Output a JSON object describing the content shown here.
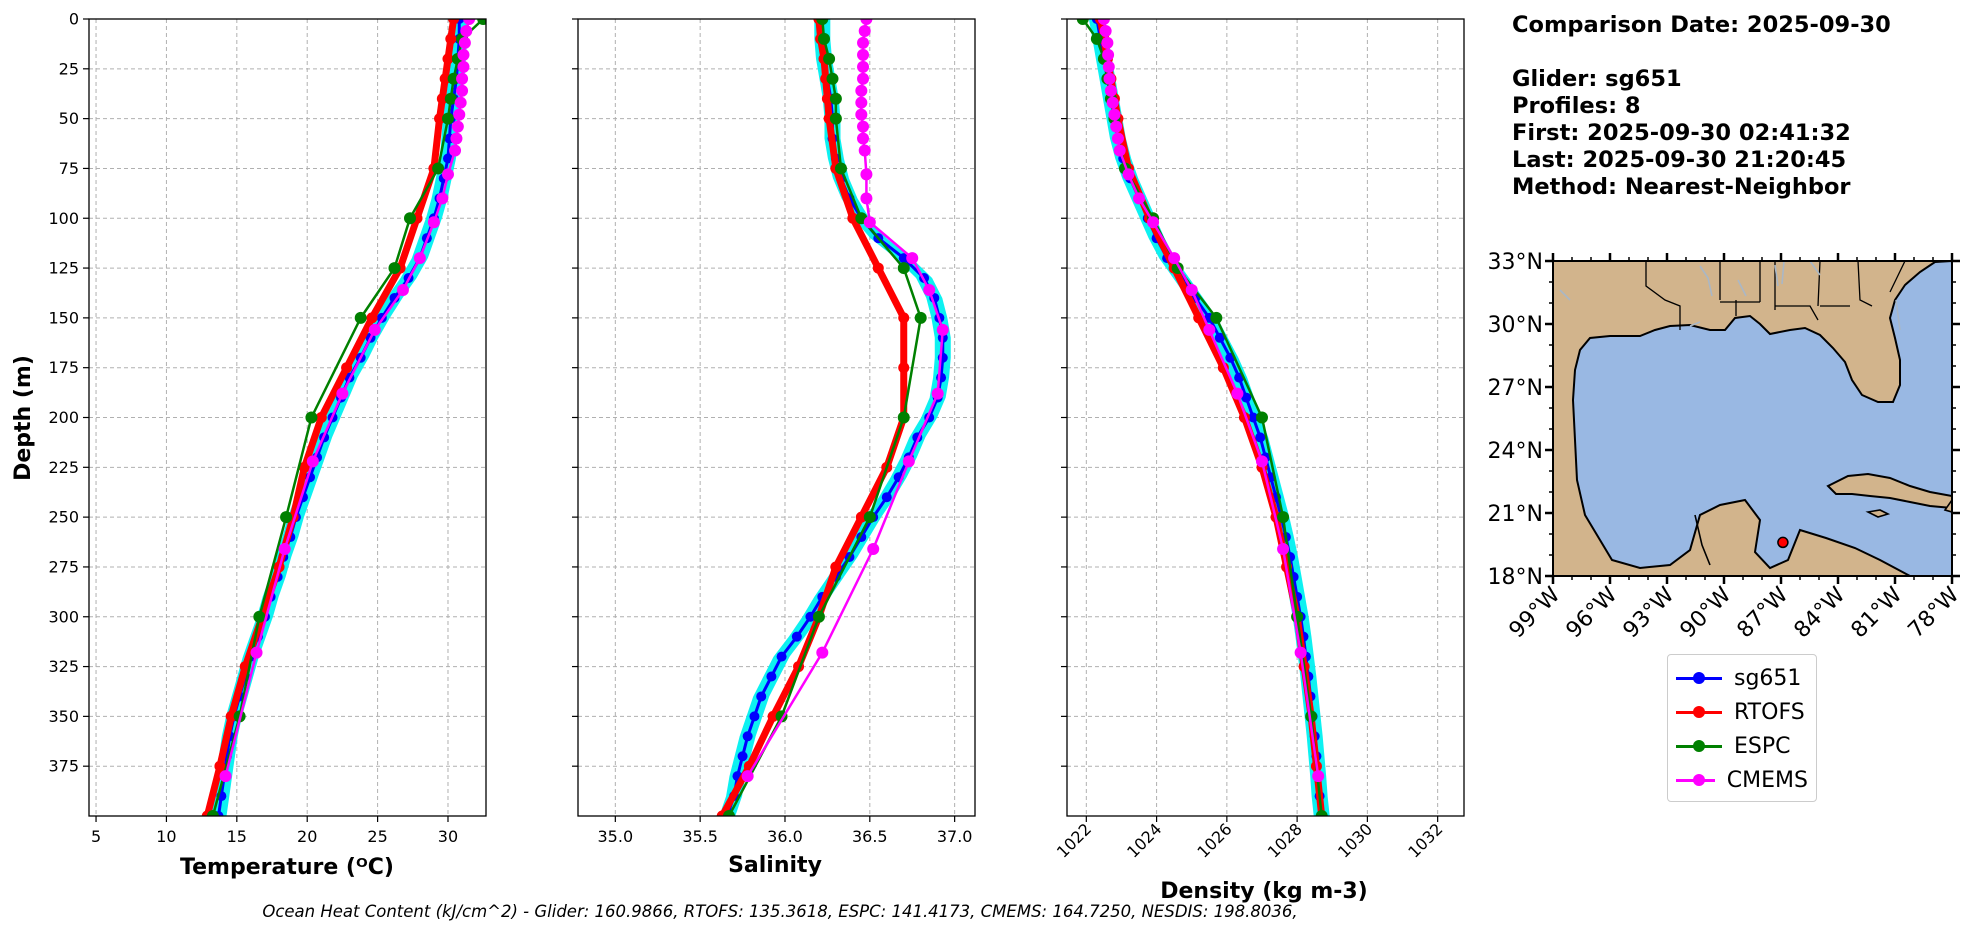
{
  "chart_data": [
    {
      "type": "line",
      "xlabel": "Temperature (ᴼC)",
      "ylabel": "Depth (m)",
      "xlim": [
        4.5,
        32.7
      ],
      "ylim": [
        400,
        0
      ],
      "xticks": [
        5,
        10,
        15,
        20,
        25,
        30
      ],
      "yticks": [
        0,
        25,
        50,
        75,
        100,
        125,
        150,
        175,
        200,
        225,
        250,
        275,
        300,
        325,
        350,
        375
      ],
      "grid": true,
      "series": [
        {
          "name": "sg651",
          "depth": [
            0,
            10,
            20,
            30,
            40,
            50,
            60,
            70,
            80,
            90,
            100,
            110,
            120,
            130,
            140,
            150,
            160,
            170,
            180,
            190,
            200,
            210,
            220,
            230,
            240,
            250,
            260,
            270,
            280,
            290,
            300,
            310,
            320,
            330,
            340,
            350,
            360,
            370,
            380,
            390,
            400
          ],
          "values": [
            30.8,
            30.8,
            30.7,
            30.6,
            30.4,
            30.2,
            30.1,
            30.0,
            29.7,
            29.4,
            29.0,
            28.5,
            28.0,
            27.2,
            26.2,
            25.3,
            24.5,
            23.8,
            23.0,
            22.4,
            21.8,
            21.2,
            20.7,
            20.2,
            19.7,
            19.2,
            18.8,
            18.3,
            17.9,
            17.4,
            17.0,
            16.5,
            16.0,
            15.6,
            15.2,
            14.8,
            14.5,
            14.3,
            14.1,
            13.9,
            13.7
          ]
        },
        {
          "name": "RTOFS",
          "depth": [
            0,
            10,
            20,
            30,
            40,
            50,
            75,
            100,
            125,
            150,
            175,
            200,
            225,
            250,
            275,
            300,
            325,
            350,
            375,
            400
          ],
          "values": [
            30.4,
            30.2,
            30.0,
            29.8,
            29.6,
            29.4,
            29.0,
            27.8,
            26.6,
            24.6,
            22.8,
            21.0,
            19.8,
            19.0,
            18.0,
            16.8,
            15.6,
            14.6,
            13.8,
            12.9
          ]
        },
        {
          "name": "ESPC",
          "depth": [
            0,
            10,
            20,
            30,
            40,
            50,
            75,
            100,
            125,
            150,
            200,
            250,
            300,
            350,
            400
          ],
          "values": [
            32.5,
            31.0,
            30.7,
            30.4,
            30.2,
            30.0,
            29.3,
            27.3,
            26.2,
            23.8,
            20.3,
            18.5,
            16.6,
            15.2,
            13.3
          ]
        },
        {
          "name": "CMEMS",
          "depth": [
            0,
            6,
            12,
            18,
            24,
            30,
            36,
            42,
            48,
            54,
            60,
            66,
            78,
            90,
            102,
            120,
            136,
            156,
            188,
            222,
            266,
            318,
            380
          ],
          "values": [
            31.5,
            31.3,
            31.2,
            31.1,
            31.1,
            31.0,
            31.0,
            30.9,
            30.8,
            30.7,
            30.6,
            30.5,
            30.0,
            29.6,
            29.0,
            28.0,
            26.8,
            24.8,
            22.5,
            20.4,
            18.4,
            16.4,
            14.2
          ]
        }
      ]
    },
    {
      "type": "line",
      "xlabel": "Salinity",
      "xlim": [
        34.78,
        37.12
      ],
      "ylim": [
        400,
        0
      ],
      "xticks": [
        "35.0",
        "35.5",
        "36.0",
        "36.5",
        "37.0"
      ],
      "grid": true,
      "series": [
        {
          "name": "sg651",
          "depth": [
            0,
            10,
            20,
            30,
            40,
            50,
            60,
            70,
            80,
            90,
            100,
            110,
            120,
            130,
            140,
            150,
            160,
            170,
            180,
            190,
            200,
            210,
            220,
            230,
            240,
            250,
            260,
            270,
            280,
            290,
            300,
            310,
            320,
            330,
            340,
            350,
            360,
            370,
            380,
            390,
            400
          ],
          "values": [
            36.22,
            36.22,
            36.23,
            36.25,
            36.27,
            36.28,
            36.28,
            36.3,
            36.33,
            36.38,
            36.45,
            36.55,
            36.7,
            36.82,
            36.88,
            36.91,
            36.93,
            36.93,
            36.92,
            36.9,
            36.85,
            36.78,
            36.73,
            36.67,
            36.6,
            36.52,
            36.45,
            36.38,
            36.3,
            36.22,
            36.15,
            36.07,
            35.98,
            35.92,
            35.86,
            35.82,
            35.78,
            35.75,
            35.72,
            35.7,
            35.66
          ]
        },
        {
          "name": "RTOFS",
          "depth": [
            0,
            10,
            20,
            30,
            40,
            50,
            75,
            100,
            125,
            150,
            175,
            200,
            225,
            250,
            275,
            300,
            325,
            350,
            375,
            400
          ],
          "values": [
            36.2,
            36.21,
            36.23,
            36.24,
            36.25,
            36.26,
            36.3,
            36.4,
            36.55,
            36.7,
            36.7,
            36.7,
            36.6,
            36.45,
            36.3,
            36.2,
            36.08,
            35.93,
            35.79,
            35.63
          ]
        },
        {
          "name": "ESPC",
          "depth": [
            0,
            10,
            20,
            30,
            40,
            50,
            75,
            100,
            125,
            150,
            200,
            250,
            300,
            350,
            400
          ],
          "values": [
            36.22,
            36.23,
            36.26,
            36.28,
            36.3,
            36.3,
            36.33,
            36.45,
            36.7,
            36.8,
            36.7,
            36.5,
            36.2,
            35.98,
            35.67
          ]
        },
        {
          "name": "CMEMS",
          "depth": [
            0,
            6,
            12,
            18,
            24,
            30,
            36,
            42,
            48,
            54,
            60,
            66,
            78,
            90,
            102,
            120,
            136,
            156,
            188,
            222,
            266,
            318,
            380
          ],
          "values": [
            36.48,
            36.47,
            36.46,
            36.46,
            36.46,
            36.46,
            36.45,
            36.45,
            36.45,
            36.46,
            36.46,
            36.47,
            36.48,
            36.48,
            36.5,
            36.75,
            36.85,
            36.93,
            36.9,
            36.73,
            36.52,
            36.22,
            35.78
          ]
        }
      ]
    },
    {
      "type": "line",
      "xlabel": "Density (kg m-3)",
      "xlim": [
        1021.45,
        1032.75
      ],
      "ylim": [
        400,
        0
      ],
      "xticks": [
        1022,
        1024,
        1026,
        1028,
        1030,
        1032
      ],
      "grid": true,
      "series": [
        {
          "name": "sg651",
          "depth": [
            0,
            10,
            20,
            30,
            40,
            50,
            60,
            70,
            80,
            90,
            100,
            110,
            120,
            130,
            140,
            150,
            160,
            170,
            180,
            190,
            200,
            210,
            220,
            230,
            240,
            250,
            260,
            270,
            280,
            290,
            300,
            310,
            320,
            330,
            340,
            350,
            360,
            370,
            380,
            390,
            400
          ],
          "values": [
            1022.3,
            1022.4,
            1022.5,
            1022.6,
            1022.7,
            1022.8,
            1022.9,
            1023.05,
            1023.25,
            1023.5,
            1023.75,
            1024.0,
            1024.3,
            1024.7,
            1025.1,
            1025.5,
            1025.8,
            1026.1,
            1026.35,
            1026.55,
            1026.75,
            1026.95,
            1027.1,
            1027.25,
            1027.4,
            1027.55,
            1027.68,
            1027.8,
            1027.9,
            1028.0,
            1028.1,
            1028.18,
            1028.25,
            1028.32,
            1028.38,
            1028.44,
            1028.5,
            1028.55,
            1028.6,
            1028.64,
            1028.7
          ]
        },
        {
          "name": "RTOFS",
          "depth": [
            0,
            10,
            20,
            30,
            40,
            50,
            75,
            100,
            125,
            150,
            175,
            200,
            225,
            250,
            275,
            300,
            325,
            350,
            375,
            400
          ],
          "values": [
            1022.4,
            1022.5,
            1022.6,
            1022.7,
            1022.8,
            1022.9,
            1023.2,
            1023.8,
            1024.5,
            1025.2,
            1025.9,
            1026.5,
            1027.0,
            1027.4,
            1027.7,
            1028.0,
            1028.2,
            1028.4,
            1028.55,
            1028.7
          ]
        },
        {
          "name": "ESPC",
          "depth": [
            0,
            10,
            20,
            30,
            40,
            50,
            75,
            100,
            125,
            150,
            200,
            250,
            300,
            350,
            400
          ],
          "values": [
            1021.9,
            1022.3,
            1022.5,
            1022.6,
            1022.7,
            1022.8,
            1023.1,
            1023.9,
            1024.6,
            1025.7,
            1027.0,
            1027.6,
            1028.0,
            1028.4,
            1028.7
          ]
        },
        {
          "name": "CMEMS",
          "depth": [
            0,
            6,
            12,
            18,
            24,
            30,
            36,
            42,
            48,
            54,
            60,
            66,
            78,
            90,
            102,
            120,
            136,
            156,
            188,
            222,
            266,
            318,
            380
          ],
          "values": [
            1022.5,
            1022.55,
            1022.6,
            1022.62,
            1022.64,
            1022.66,
            1022.7,
            1022.75,
            1022.8,
            1022.85,
            1022.9,
            1022.95,
            1023.2,
            1023.5,
            1023.9,
            1024.5,
            1025.0,
            1025.5,
            1026.3,
            1027.0,
            1027.6,
            1028.1,
            1028.6
          ]
        }
      ]
    }
  ],
  "colors": {
    "sg651": "#0000ff",
    "sg651_band": "#00f0f0",
    "RTOFS": "#ff0000",
    "ESPC": "#008000",
    "CMEMS": "#ff00ff",
    "land": "#d2b48c",
    "ocean": "#99b8e3",
    "river": "#a9b7c6",
    "grid": "#b0b0b0"
  },
  "info": {
    "comparison_date": "Comparison Date: 2025-09-30",
    "glider": "Glider: sg651",
    "profiles": "Profiles: 8",
    "first": "First: 2025-09-30 02:41:32",
    "last": "Last: 2025-09-30 21:20:45",
    "method": "Method: Nearest-Neighbor"
  },
  "map": {
    "lat_labels": [
      "33°N",
      "30°N",
      "27°N",
      "24°N",
      "21°N",
      "18°N"
    ],
    "lon_labels": [
      "99°W",
      "96°W",
      "93°W",
      "90°W",
      "87°W",
      "84°W",
      "81°W",
      "78°W"
    ],
    "lat_range": [
      18,
      33
    ],
    "lon_range": [
      -99,
      -78
    ],
    "glider_position": {
      "lon": -86.9,
      "lat": 19.6
    }
  },
  "legend": {
    "items": [
      "sg651",
      "RTOFS",
      "ESPC",
      "CMEMS"
    ]
  },
  "footer": "Ocean Heat Content (kJ/cm^2) - Glider: 160.9866,  RTOFS: 135.3618,  ESPC: 141.4173,  CMEMS: 164.7250,  NESDIS: 198.8036,"
}
